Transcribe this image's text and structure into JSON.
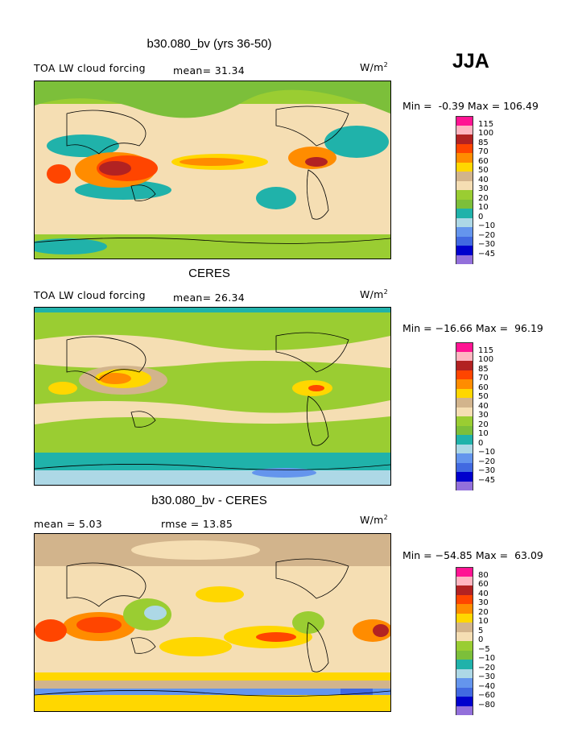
{
  "season": "JJA",
  "units_text": "W/m",
  "units_sup": "2",
  "panels": [
    {
      "title": "b30.080_bv (yrs 36-50)",
      "left_label": "TOA LW cloud forcing",
      "stat1": "mean=  31.34",
      "stat2": "",
      "minmax": "Min =  -0.39 Max = 106.49",
      "levels": [
        "115",
        "100",
        "85",
        "70",
        "60",
        "50",
        "40",
        "30",
        "20",
        "10",
        "0",
        "−10",
        "−20",
        "−30",
        "−45"
      ]
    },
    {
      "title": "CERES",
      "left_label": "TOA LW cloud forcing",
      "stat1": "mean=  26.34",
      "stat2": "",
      "minmax": "Min = −16.66 Max =  96.19",
      "levels": [
        "115",
        "100",
        "85",
        "70",
        "60",
        "50",
        "40",
        "30",
        "20",
        "10",
        "0",
        "−10",
        "−20",
        "−30",
        "−45"
      ]
    },
    {
      "title": "b30.080_bv - CERES",
      "left_label": "mean =   5.03",
      "stat1": "rmse =  13.85",
      "stat2": "",
      "minmax": "Min = −54.85 Max =  63.09",
      "levels": [
        "80",
        "60",
        "40",
        "30",
        "20",
        "10",
        "5",
        "0",
        "−5",
        "−10",
        "−20",
        "−30",
        "−40",
        "−60",
        "−80"
      ]
    }
  ],
  "colors": [
    "#ff1493",
    "#ffb6c1",
    "#b22222",
    "#ff4500",
    "#ff8c00",
    "#ffd700",
    "#d2b48c",
    "#f5deb3",
    "#9acd32",
    "#7cbf3a",
    "#20b2aa",
    "#add8e6",
    "#6495ed",
    "#4169e1",
    "#0000cd",
    "#9370db"
  ]
}
